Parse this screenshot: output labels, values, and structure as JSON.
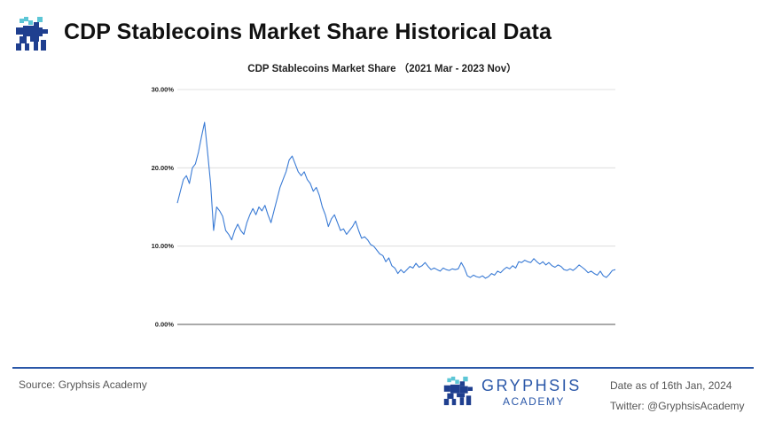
{
  "header": {
    "title": "CDP Stablecoins Market Share Historical Data"
  },
  "footer": {
    "source": "Source: Gryphsis Academy",
    "brand_name": "GRYPHSIS",
    "brand_sub": "ACADEMY",
    "date": "Date as of 16th Jan, 2024",
    "twitter": "Twitter: @GryphsisAcademy"
  },
  "colors": {
    "line": "#3a7bd5",
    "brand": "#2a57a8",
    "logo_accent": "#5cc6d6",
    "gridline": "#d9d9d9",
    "axis": "#555555"
  },
  "icons": {
    "header_logo": "gryphon-logo-icon",
    "footer_logo": "gryphon-logo-icon"
  },
  "chart_data": {
    "type": "line",
    "title": "CDP Stablecoins Market Share （2021 Mar - 2023 Nov）",
    "xlabel": "",
    "ylabel": "",
    "x_range": [
      "2021-03",
      "2023-11"
    ],
    "ylim": [
      0,
      30
    ],
    "y_ticks": [
      "0.00%",
      "10.00%",
      "20.00%",
      "30.00%"
    ],
    "grid": true,
    "legend": "none",
    "series": [
      {
        "values": [
          15.5,
          17,
          18.5,
          19,
          18,
          20,
          20.5,
          22,
          24,
          25.8,
          22,
          18,
          12,
          15,
          14.5,
          13.8,
          12,
          11.5,
          10.8,
          12,
          12.8,
          12,
          11.5,
          13,
          14,
          14.8,
          14,
          15,
          14.5,
          15.2,
          14,
          13,
          14.5,
          16,
          17.5,
          18.5,
          19.5,
          21,
          21.5,
          20.5,
          19.5,
          19,
          19.5,
          18.5,
          18,
          17,
          17.5,
          16.5,
          15,
          14,
          12.5,
          13.5,
          14,
          13,
          12,
          12.2,
          11.5,
          12,
          12.5,
          13.2,
          12,
          11,
          11.2,
          10.8,
          10.2,
          10,
          9.5,
          9,
          8.8,
          8,
          8.5,
          7.5,
          7.2,
          6.5,
          7,
          6.6,
          7,
          7.4,
          7.2,
          7.8,
          7.3,
          7.5,
          7.9,
          7.4,
          7.0,
          7.2,
          7.0,
          6.8,
          7.2,
          7.0,
          6.9,
          7.1,
          7.0,
          7.1,
          7.9,
          7.2,
          6.2,
          6.0,
          6.3,
          6.1,
          6.0,
          6.2,
          5.9,
          6.1,
          6.5,
          6.3,
          6.8,
          6.6,
          7.0,
          7.3,
          7.1,
          7.5,
          7.2,
          8.0,
          7.9,
          8.2,
          8.0,
          7.9,
          8.4,
          8.0,
          7.7,
          8.0,
          7.6,
          7.9,
          7.5,
          7.3,
          7.6,
          7.4,
          7.0,
          6.9,
          7.1,
          6.9,
          7.2,
          7.6,
          7.3,
          7.0,
          6.6,
          6.8,
          6.5,
          6.3,
          6.8,
          6.2,
          6.0,
          6.4,
          6.9,
          7.0
        ]
      }
    ]
  }
}
